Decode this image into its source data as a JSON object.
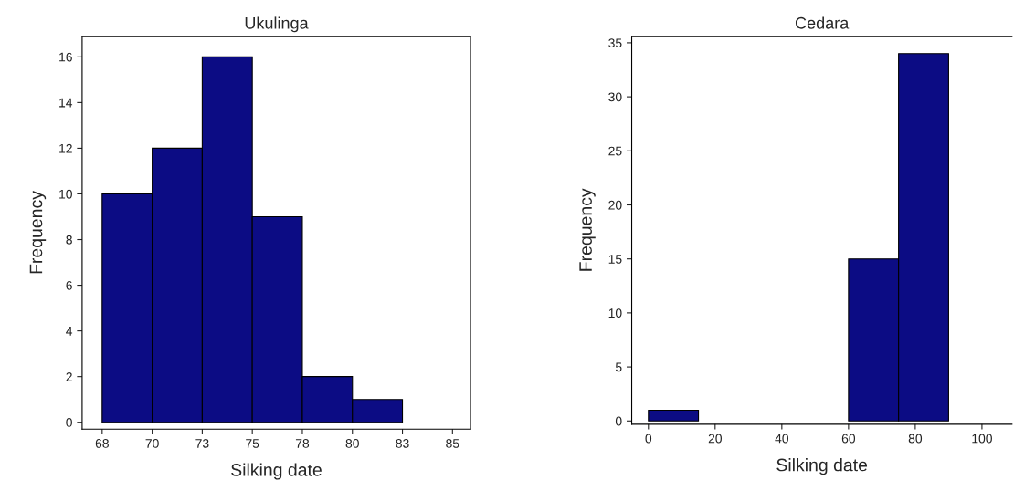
{
  "chart_data": [
    {
      "type": "histogram",
      "title": "Ukulinga",
      "xlabel": "Silking date",
      "ylabel": "Frequency",
      "bins": [
        68,
        70.5,
        73,
        75.5,
        78,
        80.5,
        83
      ],
      "values": [
        10,
        12,
        16,
        9,
        2,
        1
      ],
      "color": "#0c0c84",
      "xlim": [
        67,
        86.4
      ],
      "xticks": [
        68,
        {
          "value": 70.5,
          "label": "70"
        },
        73,
        {
          "value": 75.5,
          "label": "75"
        },
        78,
        {
          "value": 80.5,
          "label": "80"
        },
        83,
        {
          "value": 85.5,
          "label": "85"
        }
      ],
      "ylim": [
        -0.3,
        16.9
      ],
      "yticks": [
        0,
        2,
        4,
        6,
        8,
        10,
        12,
        14,
        16
      ],
      "grid": false
    },
    {
      "type": "histogram",
      "title": "Cedara",
      "xlabel": "Silking date",
      "ylabel": "Frequency",
      "bins": [
        0,
        15,
        30,
        45,
        60,
        75,
        90
      ],
      "values": [
        1,
        0,
        0,
        0,
        15,
        34
      ],
      "color": "#0c0c84",
      "xlim": [
        -5,
        109
      ],
      "xticks": [
        0,
        20,
        40,
        60,
        80,
        100
      ],
      "ylim": [
        -0.3,
        35.6
      ],
      "yticks": [
        0,
        5,
        10,
        15,
        20,
        25,
        30,
        35
      ],
      "grid": false
    }
  ]
}
